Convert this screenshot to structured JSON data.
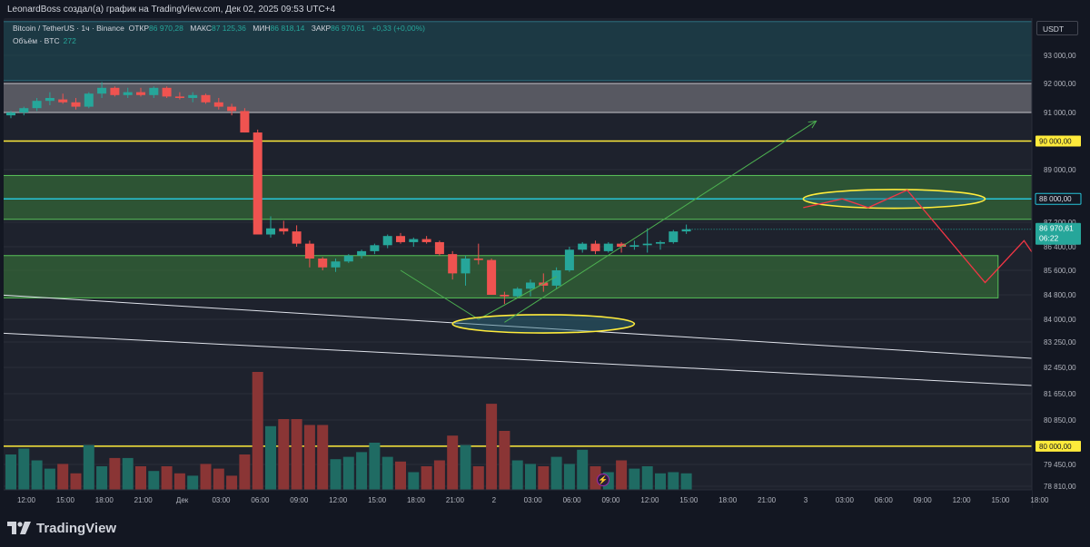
{
  "attribution": "LeonardBoss создал(а) график на TradingView.com, Дек 02, 2025 09:53 UTC+4",
  "legend": {
    "symbol": "Bitcoin / TetherUS · 1ч · Binance",
    "open_label": "ОТКР",
    "open_value": "86 970,28",
    "high_label": "МАКС",
    "high_value": "87 125,36",
    "low_label": "МИН",
    "low_value": "86 818,14",
    "close_label": "ЗАКР",
    "close_value": "86 970,61",
    "change": "+0,33 (+0,00%)",
    "volume_label": "Объём · BTC",
    "volume_value": "272"
  },
  "currency": "USDT",
  "logo_text": "TradingView",
  "colors": {
    "up": "#26a69a",
    "down": "#ef5350",
    "level": "#ffeb3b",
    "green_zone": "#4caf50",
    "teal_zone": "#1e5a66",
    "forecast_up": "#4caf50",
    "forecast_down": "#f23645"
  },
  "chart_data": {
    "type": "candlestick",
    "price_axis": {
      "ticks": [
        "93 000,00",
        "92 000,00",
        "91 000,00",
        "89 000,00",
        "87 200,00",
        "86 400,00",
        "85 600,00",
        "84 800,00",
        "84 000,00",
        "83 250,00",
        "82 450,00",
        "81 650,00",
        "80 850,00",
        "80 050,00",
        "79 450,00",
        "78 810,00"
      ],
      "tick_values": [
        93000,
        92000,
        91000,
        89000,
        87200,
        86400,
        85600,
        84800,
        84000,
        83250,
        82450,
        81650,
        80850,
        80050,
        79450,
        78810
      ],
      "range": [
        78500,
        94000
      ]
    },
    "time_axis": {
      "ticks": [
        "12:00",
        "15:00",
        "18:00",
        "21:00",
        "Дек",
        "03:00",
        "06:00",
        "09:00",
        "12:00",
        "15:00",
        "18:00",
        "21:00",
        "2",
        "03:00",
        "06:00",
        "09:00",
        "12:00",
        "15:00",
        "18:00",
        "21:00",
        "3",
        "03:00",
        "06:00",
        "09:00",
        "12:00",
        "15:00",
        "18:00"
      ]
    },
    "level_labels": [
      {
        "label": "90 000,00",
        "value": 90000,
        "kind": "yellow"
      },
      {
        "label": "88 000,00",
        "value": 88000,
        "kind": "cyan"
      },
      {
        "label": "80 000,00",
        "value": 80000,
        "kind": "yellow"
      }
    ],
    "current_price": {
      "label": "86 970,61",
      "countdown": "06:22",
      "value": 86970.61
    },
    "zones": [
      {
        "from_bar": -1,
        "to_bar": 95,
        "low": 92100,
        "high": 94200,
        "kind": "teal"
      },
      {
        "from_bar": -1,
        "to_bar": 95,
        "low": 91000,
        "high": 92000,
        "kind": "gray"
      },
      {
        "from_bar": -1,
        "to_bar": 95,
        "low": 87300,
        "high": 88800,
        "kind": "green"
      },
      {
        "from_bar": -1,
        "to_bar": 76,
        "low": 84700,
        "high": 86100,
        "kind": "green"
      }
    ],
    "candles": [
      [
        90900,
        91050,
        90800,
        91000,
        30
      ],
      [
        91000,
        91200,
        90900,
        91150,
        35
      ],
      [
        91150,
        91500,
        91050,
        91400,
        25
      ],
      [
        91400,
        91700,
        91250,
        91500,
        18
      ],
      [
        91450,
        91650,
        91300,
        91350,
        22
      ],
      [
        91350,
        91500,
        91100,
        91200,
        14
      ],
      [
        91200,
        91700,
        91150,
        91650,
        38
      ],
      [
        91650,
        92050,
        91500,
        91850,
        20
      ],
      [
        91850,
        91900,
        91550,
        91600,
        27
      ],
      [
        91600,
        91850,
        91500,
        91700,
        27
      ],
      [
        91700,
        91850,
        91550,
        91600,
        20
      ],
      [
        91600,
        91900,
        91500,
        91850,
        16
      ],
      [
        91850,
        91900,
        91500,
        91550,
        20
      ],
      [
        91550,
        91700,
        91450,
        91500,
        14
      ],
      [
        91500,
        91700,
        91350,
        91600,
        12
      ],
      [
        91600,
        91650,
        91300,
        91350,
        22
      ],
      [
        91350,
        91500,
        91100,
        91200,
        18
      ],
      [
        91200,
        91300,
        90900,
        91050,
        12
      ],
      [
        91050,
        91150,
        90300,
        90300,
        30
      ],
      [
        90300,
        90400,
        86800,
        86800,
        100
      ],
      [
        86800,
        87400,
        86700,
        87000,
        54
      ],
      [
        87000,
        87250,
        86800,
        86900,
        60
      ],
      [
        86900,
        87100,
        86400,
        86500,
        60
      ],
      [
        86500,
        86600,
        85700,
        86000,
        55
      ],
      [
        86000,
        86050,
        85600,
        85700,
        55
      ],
      [
        85700,
        86000,
        85550,
        85900,
        26
      ],
      [
        85900,
        86150,
        85850,
        86100,
        28
      ],
      [
        86100,
        86300,
        86000,
        86250,
        32
      ],
      [
        86250,
        86500,
        86150,
        86450,
        40
      ],
      [
        86450,
        86800,
        86350,
        86750,
        28
      ],
      [
        86750,
        86850,
        86500,
        86550,
        24
      ],
      [
        86550,
        86700,
        86400,
        86650,
        15
      ],
      [
        86650,
        86750,
        86500,
        86550,
        20
      ],
      [
        86550,
        86600,
        86100,
        86150,
        25
      ],
      [
        86150,
        86250,
        85300,
        85500,
        46
      ],
      [
        85500,
        86100,
        85100,
        86000,
        38
      ],
      [
        86000,
        86500,
        85800,
        85950,
        20
      ],
      [
        85950,
        86000,
        84800,
        84800,
        73
      ],
      [
        84800,
        84900,
        84500,
        84750,
        50
      ],
      [
        84750,
        85050,
        84700,
        85000,
        25
      ],
      [
        85000,
        85300,
        84750,
        85200,
        22
      ],
      [
        85200,
        85500,
        84900,
        85100,
        20
      ],
      [
        85100,
        85700,
        85000,
        85600,
        28
      ],
      [
        85600,
        86400,
        85550,
        86300,
        22
      ],
      [
        86300,
        86550,
        86200,
        86500,
        34
      ],
      [
        86500,
        86600,
        86150,
        86250,
        20
      ],
      [
        86250,
        86550,
        86200,
        86500,
        15
      ],
      [
        86500,
        86550,
        86200,
        86400,
        25
      ],
      [
        86400,
        86600,
        86300,
        86450,
        18
      ],
      [
        86450,
        87000,
        86200,
        86500,
        20
      ],
      [
        86500,
        86600,
        86300,
        86550,
        14
      ],
      [
        86550,
        86950,
        86500,
        86900,
        15
      ],
      [
        86900,
        87125,
        86818,
        86970,
        14
      ]
    ],
    "volume_axis_max": 100,
    "forecast_up_arrow": [
      [
        38,
        83900
      ],
      [
        62,
        90700
      ]
    ],
    "forecast_zigzag": [
      [
        61,
        87700
      ],
      [
        64,
        88000
      ],
      [
        66,
        87700
      ],
      [
        69,
        88300
      ],
      [
        75,
        85200
      ],
      [
        78,
        86600
      ],
      [
        86,
        81700
      ]
    ],
    "ellipses": [
      {
        "center_bar": 68.0,
        "center_price": 88000,
        "half_width_bars": 7.0,
        "half_height_price": 320
      },
      {
        "center_bar": 41.0,
        "center_price": 83850,
        "half_width_bars": 7.0,
        "half_height_price": 300
      }
    ],
    "v_lines": [
      [
        30,
        85600
      ],
      [
        36,
        84000
      ],
      [
        42,
        85400
      ]
    ],
    "trend_lines": [
      {
        "from": [
          -1,
          84800
        ],
        "to": [
          86,
          82550
        ]
      },
      {
        "from": [
          -1,
          83550
        ],
        "to": [
          86,
          81750
        ]
      }
    ]
  }
}
